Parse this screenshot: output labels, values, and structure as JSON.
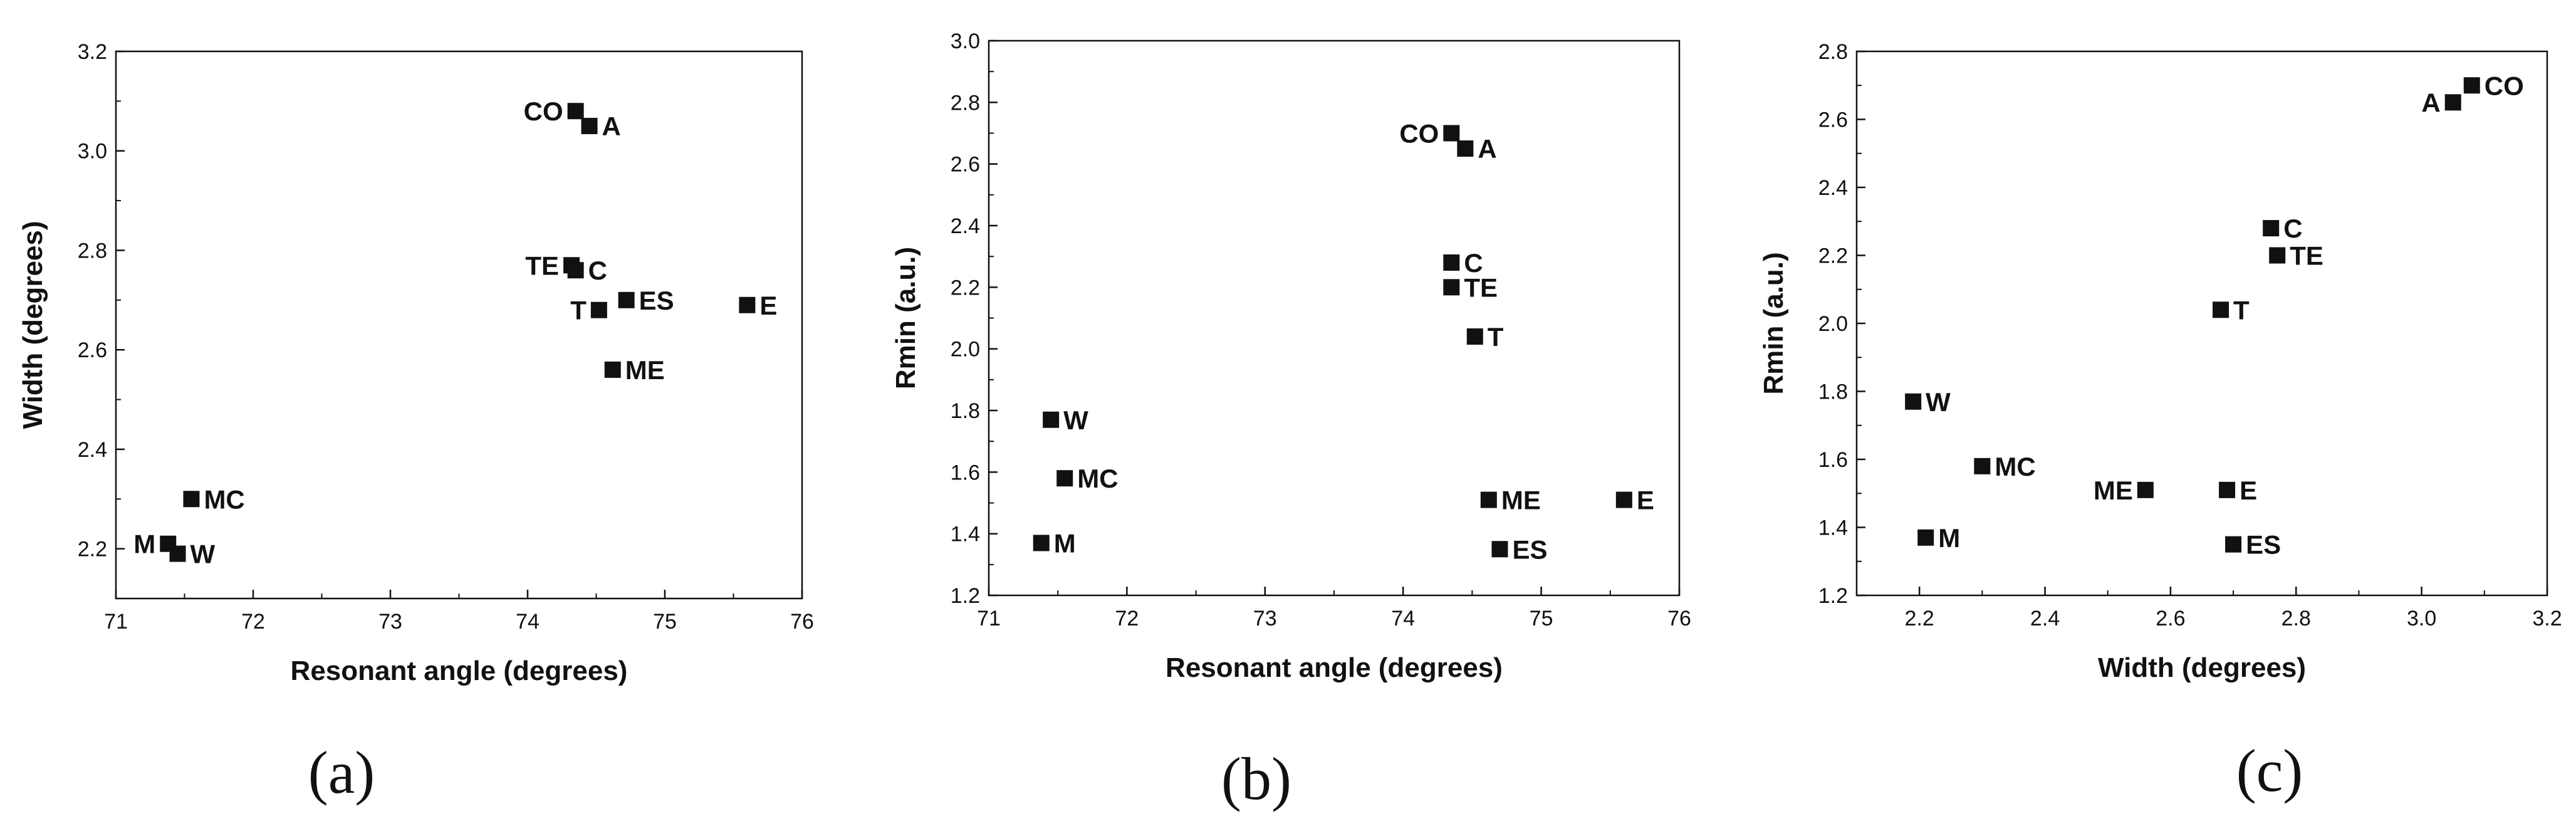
{
  "colors": {
    "marker": "#111111",
    "axis": "#111111",
    "background": "#ffffff"
  },
  "chart_data": [
    {
      "type": "scatter",
      "panel": "(a)",
      "xlabel": "Resonant angle (degrees)",
      "ylabel": "Width (degrees)",
      "xlim": [
        71,
        76
      ],
      "ylim": [
        2.1,
        3.2
      ],
      "xticks": [
        71,
        72,
        73,
        74,
        75,
        76
      ],
      "yticks": [
        2.2,
        2.4,
        2.6,
        2.8,
        3.0,
        3.2
      ],
      "xtick_labels": [
        "71",
        "72",
        "73",
        "74",
        "75",
        "76"
      ],
      "ytick_labels": [
        "2.2",
        "2.4",
        "2.6",
        "2.8",
        "3.0",
        "3.2"
      ],
      "points": [
        {
          "label": "CO",
          "x": 74.35,
          "y": 3.08,
          "label_side": "left"
        },
        {
          "label": "A",
          "x": 74.45,
          "y": 3.05,
          "label_side": "right"
        },
        {
          "label": "TE",
          "x": 74.32,
          "y": 2.77,
          "label_side": "left"
        },
        {
          "label": "C",
          "x": 74.35,
          "y": 2.76,
          "label_side": "right"
        },
        {
          "label": "T",
          "x": 74.52,
          "y": 2.68,
          "label_side": "left"
        },
        {
          "label": "ES",
          "x": 74.72,
          "y": 2.7,
          "label_side": "right"
        },
        {
          "label": "E",
          "x": 75.6,
          "y": 2.69,
          "label_side": "right"
        },
        {
          "label": "ME",
          "x": 74.62,
          "y": 2.56,
          "label_side": "right"
        },
        {
          "label": "MC",
          "x": 71.55,
          "y": 2.3,
          "label_side": "right"
        },
        {
          "label": "M",
          "x": 71.38,
          "y": 2.21,
          "label_side": "left"
        },
        {
          "label": "W",
          "x": 71.45,
          "y": 2.19,
          "label_side": "right"
        }
      ]
    },
    {
      "type": "scatter",
      "panel": "(b)",
      "xlabel": "Resonant angle (degrees)",
      "ylabel": "Rmin (a.u.)",
      "xlim": [
        71,
        76
      ],
      "ylim": [
        1.2,
        3.0
      ],
      "xticks": [
        71,
        72,
        73,
        74,
        75,
        76
      ],
      "yticks": [
        1.2,
        1.4,
        1.6,
        1.8,
        2.0,
        2.2,
        2.4,
        2.6,
        2.8,
        3.0
      ],
      "xtick_labels": [
        "71",
        "72",
        "73",
        "74",
        "75",
        "76"
      ],
      "ytick_labels": [
        "1.2",
        "1.4",
        "1.6",
        "1.8",
        "2.0",
        "2.2",
        "2.4",
        "2.6",
        "2.8",
        "3.0"
      ],
      "points": [
        {
          "label": "CO",
          "x": 74.35,
          "y": 2.7,
          "label_side": "left"
        },
        {
          "label": "A",
          "x": 74.45,
          "y": 2.65,
          "label_side": "right"
        },
        {
          "label": "C",
          "x": 74.35,
          "y": 2.28,
          "label_side": "right"
        },
        {
          "label": "TE",
          "x": 74.35,
          "y": 2.2,
          "label_side": "right"
        },
        {
          "label": "T",
          "x": 74.52,
          "y": 2.04,
          "label_side": "right"
        },
        {
          "label": "W",
          "x": 71.45,
          "y": 1.77,
          "label_side": "right"
        },
        {
          "label": "MC",
          "x": 71.55,
          "y": 1.58,
          "label_side": "right"
        },
        {
          "label": "ME",
          "x": 74.62,
          "y": 1.51,
          "label_side": "right"
        },
        {
          "label": "E",
          "x": 75.6,
          "y": 1.51,
          "label_side": "right"
        },
        {
          "label": "M",
          "x": 71.38,
          "y": 1.37,
          "label_side": "right"
        },
        {
          "label": "ES",
          "x": 74.7,
          "y": 1.35,
          "label_side": "right"
        }
      ]
    },
    {
      "type": "scatter",
      "panel": "(c)",
      "xlabel": "Width (degrees)",
      "ylabel": "Rmin (a.u.)",
      "xlim": [
        2.1,
        3.2
      ],
      "ylim": [
        1.2,
        2.8
      ],
      "xticks": [
        2.2,
        2.4,
        2.6,
        2.8,
        3.0,
        3.2
      ],
      "yticks": [
        1.2,
        1.4,
        1.6,
        1.8,
        2.0,
        2.2,
        2.4,
        2.6,
        2.8
      ],
      "xtick_labels": [
        "2.2",
        "2.4",
        "2.6",
        "2.8",
        "3.0",
        "3.2"
      ],
      "ytick_labels": [
        "1.2",
        "1.4",
        "1.6",
        "1.8",
        "2.0",
        "2.2",
        "2.4",
        "2.6",
        "2.8"
      ],
      "points": [
        {
          "label": "CO",
          "x": 3.08,
          "y": 2.7,
          "label_side": "right"
        },
        {
          "label": "A",
          "x": 3.05,
          "y": 2.65,
          "label_side": "left"
        },
        {
          "label": "C",
          "x": 2.76,
          "y": 2.28,
          "label_side": "right"
        },
        {
          "label": "TE",
          "x": 2.77,
          "y": 2.2,
          "label_side": "right"
        },
        {
          "label": "T",
          "x": 2.68,
          "y": 2.04,
          "label_side": "right"
        },
        {
          "label": "W",
          "x": 2.19,
          "y": 1.77,
          "label_side": "right"
        },
        {
          "label": "MC",
          "x": 2.3,
          "y": 1.58,
          "label_side": "right"
        },
        {
          "label": "ME",
          "x": 2.56,
          "y": 1.51,
          "label_side": "left"
        },
        {
          "label": "E",
          "x": 2.69,
          "y": 1.51,
          "label_side": "right"
        },
        {
          "label": "M",
          "x": 2.21,
          "y": 1.37,
          "label_side": "right"
        },
        {
          "label": "ES",
          "x": 2.7,
          "y": 1.35,
          "label_side": "right"
        }
      ]
    }
  ]
}
